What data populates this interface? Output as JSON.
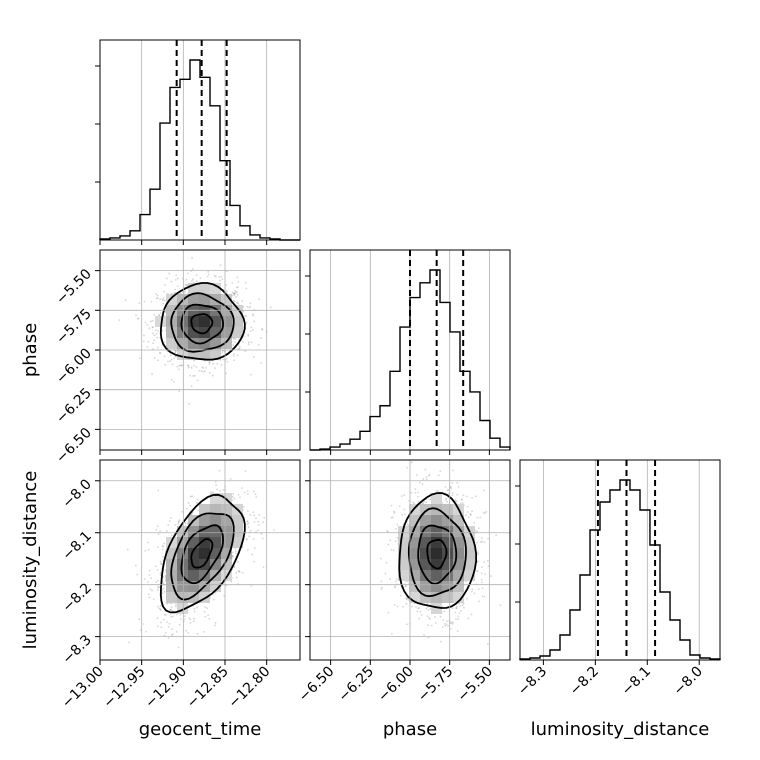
{
  "chart_data": {
    "type": "corner",
    "parameters": [
      "geocent_time",
      "phase",
      "luminosity_distance"
    ],
    "axis_labels": {
      "geocent_time": "geocent_time",
      "phase": "phase",
      "luminosity_distance": "luminosity_distance"
    },
    "ranges": {
      "geocent_time": [
        -13.0,
        -12.76
      ],
      "phase": [
        -6.63,
        -5.37
      ],
      "luminosity_distance": [
        -8.345,
        -7.96
      ]
    },
    "ticks": {
      "geocent_time": {
        "values": [
          -13.0,
          -12.95,
          -12.9,
          -12.85,
          -12.8
        ],
        "labels": [
          "−13.00",
          "−12.95",
          "−12.90",
          "−12.85",
          "−12.80"
        ]
      },
      "phase": {
        "values": [
          -6.5,
          -6.25,
          -6.0,
          -5.75,
          -5.5
        ],
        "labels": [
          "−6.50",
          "−6.25",
          "−6.00",
          "−5.75",
          "−5.50"
        ]
      },
      "luminosity_distance": {
        "values": [
          -8.3,
          -8.2,
          -8.1,
          -8.0
        ],
        "labels": [
          "−8.3",
          "−8.2",
          "−8.1",
          "−8.0"
        ]
      }
    },
    "histograms": {
      "geocent_time": {
        "bin_edges": [
          -13.0,
          -12.988,
          -12.976,
          -12.964,
          -12.952,
          -12.94,
          -12.928,
          -12.916,
          -12.904,
          -12.892,
          -12.88,
          -12.868,
          -12.856,
          -12.844,
          -12.832,
          -12.82,
          -12.808,
          -12.796,
          -12.784,
          -12.772,
          -12.76
        ],
        "counts": [
          1,
          2,
          4,
          9,
          25,
          50,
          115,
          150,
          158,
          177,
          160,
          132,
          78,
          34,
          14,
          5,
          2,
          1,
          0,
          0
        ],
        "quantiles": [
          -12.908,
          -12.878,
          -12.848
        ]
      },
      "phase": {
        "bin_edges": [
          -6.63,
          -6.567,
          -6.504,
          -6.441,
          -6.378,
          -6.315,
          -6.252,
          -6.189,
          -6.126,
          -6.063,
          -6.0,
          -5.937,
          -5.874,
          -5.811,
          -5.748,
          -5.685,
          -5.622,
          -5.559,
          -5.496,
          -5.433,
          -5.37
        ],
        "counts": [
          0,
          1,
          3,
          6,
          11,
          19,
          34,
          45,
          80,
          125,
          155,
          170,
          183,
          150,
          120,
          80,
          59,
          30,
          12,
          3
        ],
        "quantiles": [
          -6.0,
          -5.832,
          -5.665
        ]
      },
      "luminosity_distance": {
        "bin_edges": [
          -8.345,
          -8.3258,
          -8.3065,
          -8.2873,
          -8.268,
          -8.2488,
          -8.2295,
          -8.2102,
          -8.191,
          -8.1718,
          -8.1525,
          -8.1333,
          -8.114,
          -8.0948,
          -8.0755,
          -8.0562,
          -8.037,
          -8.0178,
          -7.9985,
          -7.9793,
          -7.96
        ],
        "counts": [
          1,
          2,
          4,
          10,
          25,
          50,
          85,
          130,
          158,
          170,
          180,
          170,
          150,
          115,
          68,
          40,
          20,
          5,
          2,
          1
        ],
        "quantiles": [
          -8.195,
          -8.14,
          -8.085
        ]
      }
    },
    "pairs": [
      {
        "x": "geocent_time",
        "y": "phase",
        "center": [
          -12.878,
          -5.832
        ],
        "sigma": [
          0.025,
          0.12
        ],
        "correlation": 0.0
      },
      {
        "x": "geocent_time",
        "y": "luminosity_distance",
        "center": [
          -12.878,
          -8.14
        ],
        "sigma": [
          0.025,
          0.055
        ],
        "correlation": 0.5
      },
      {
        "x": "phase",
        "y": "luminosity_distance",
        "center": [
          -5.832,
          -8.14
        ],
        "sigma": [
          0.12,
          0.055
        ],
        "correlation": 0.0
      }
    ],
    "grid": true
  }
}
